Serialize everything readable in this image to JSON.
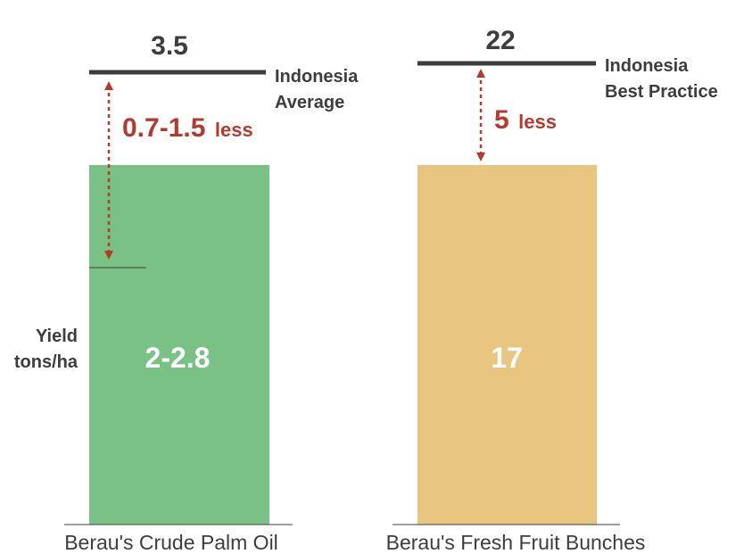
{
  "chart_data": [
    {
      "type": "bar",
      "category": "Berau's Crude Palm Oil",
      "value_label": "2-2.8",
      "value_range": [
        2,
        2.8
      ],
      "bar_color": "#79c184",
      "y_label_line1": "Yield",
      "y_label_line2": "tons/ha",
      "benchmark": {
        "value_label": "3.5",
        "value": 3.5,
        "label_line1": "Indonesia",
        "label_line2": "Average"
      },
      "gap": {
        "value_label": "0.7-1.5",
        "unit_label": "less"
      }
    },
    {
      "type": "bar",
      "category": "Berau's Fresh Fruit Bunches",
      "value_label": "17",
      "value": 17,
      "bar_color": "#e9c67f",
      "benchmark": {
        "value_label": "22",
        "value": 22,
        "label_line1": "Indonesia",
        "label_line2": "Best Practice"
      },
      "gap": {
        "value_label": "5",
        "unit_label": "less"
      }
    }
  ],
  "colors": {
    "benchmark_line": "#3d3d3d",
    "gap_accent": "#b53a2e",
    "text_dark": "#3d3d3d",
    "bar_text": "#ffffff"
  }
}
